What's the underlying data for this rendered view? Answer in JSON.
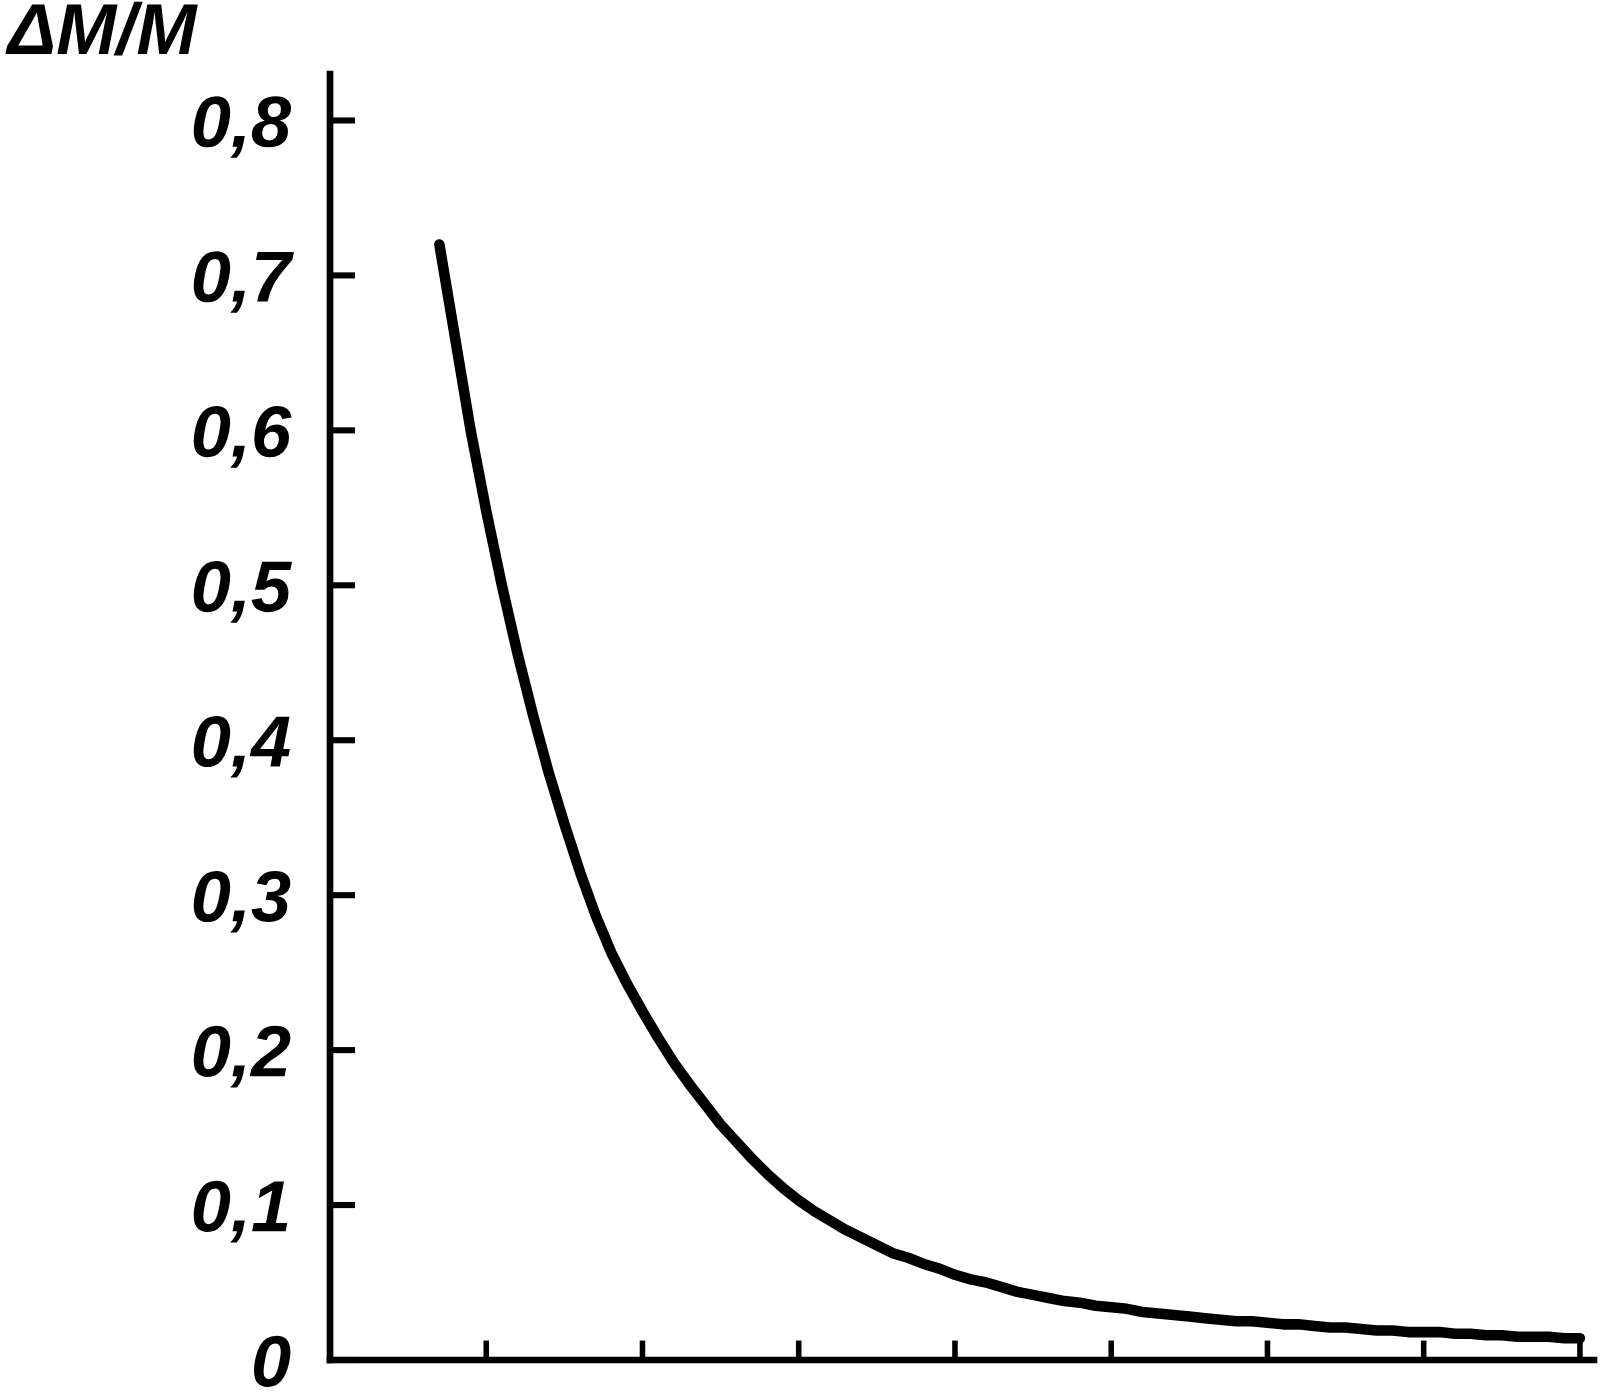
{
  "chart_data": {
    "type": "line",
    "ylabel": "ΔM/M",
    "tick_labels": "y",
    "line_style": "solid",
    "color": "#000000",
    "categories": [
      null,
      null,
      null,
      null,
      null,
      null,
      null,
      null,
      null,
      null,
      null,
      null,
      null,
      null,
      null,
      null,
      null,
      null,
      null,
      null,
      null,
      null,
      null,
      null,
      null,
      null,
      null,
      null,
      null,
      null,
      null,
      null,
      null,
      null,
      null,
      null,
      null,
      null,
      null,
      null,
      null,
      null,
      null,
      null,
      null,
      null,
      null,
      null,
      null,
      null,
      null,
      null,
      null,
      null,
      null,
      null,
      null,
      null,
      null,
      null,
      null,
      null,
      null,
      null,
      null,
      null,
      null,
      null,
      null,
      null,
      null,
      null,
      null,
      null,
      null,
      null,
      null,
      null,
      null,
      null,
      null
    ],
    "values": [
      null,
      null,
      null,
      null,
      null,
      null,
      null,
      0.72,
      0.66,
      0.6,
      0.548,
      0.5,
      0.456,
      0.416,
      0.379,
      0.346,
      0.315,
      0.287,
      0.263,
      0.243,
      0.225,
      0.208,
      0.192,
      0.178,
      0.165,
      0.152,
      0.141,
      0.13,
      0.12,
      0.111,
      0.103,
      0.096,
      0.09,
      0.084,
      0.079,
      0.074,
      0.069,
      0.066,
      0.062,
      0.059,
      0.055,
      0.052,
      0.05,
      0.047,
      0.044,
      0.042,
      0.04,
      0.038,
      0.037,
      0.035,
      0.034,
      0.033,
      0.031,
      0.03,
      0.029,
      0.028,
      0.027,
      0.026,
      0.025,
      0.025,
      0.024,
      0.023,
      0.023,
      0.022,
      0.021,
      0.021,
      0.02,
      0.019,
      0.019,
      0.018,
      0.018,
      0.018,
      0.017,
      0.017,
      0.016,
      0.016,
      0.015,
      0.015,
      0.015,
      0.014,
      0.014
    ],
    "ylim": [
      0,
      0.83
    ],
    "yticks": [
      0,
      {
        "value": 0.1,
        "label": "0,1"
      },
      {
        "value": 0.2,
        "label": "0,2"
      },
      {
        "value": 0.3,
        "label": "0,3"
      },
      {
        "value": 0.4,
        "label": "0,4"
      },
      {
        "value": 0.5,
        "label": "0,5"
      },
      {
        "value": 0.6,
        "label": "0,6"
      },
      {
        "value": 0.7,
        "label": "0,7"
      },
      {
        "value": 0.8,
        "label": "0,8"
      }
    ]
  }
}
